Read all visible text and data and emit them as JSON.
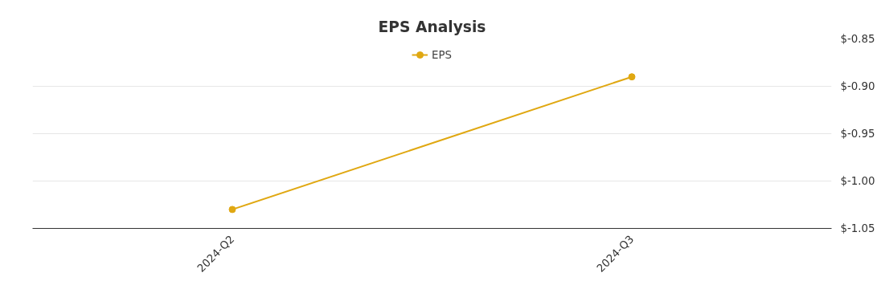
{
  "chart_data": {
    "type": "line",
    "title": "EPS Analysis",
    "categories": [
      "2024-Q2",
      "2024-Q3"
    ],
    "series": [
      {
        "name": "EPS",
        "color": "#e0a812",
        "values": [
          -1.03,
          -0.89
        ]
      }
    ],
    "ylim": [
      -1.05,
      -0.85
    ],
    "yticks": [
      {
        "value": -1.05,
        "label": "$-1.05"
      },
      {
        "value": -1.0,
        "label": "$-1.00"
      },
      {
        "value": -0.95,
        "label": "$-0.95"
      },
      {
        "value": -0.9,
        "label": "$-0.90"
      },
      {
        "value": -0.85,
        "label": "$-0.85"
      }
    ],
    "grid": "y",
    "legend": "top",
    "marker": "circle",
    "line_style": "solid"
  }
}
